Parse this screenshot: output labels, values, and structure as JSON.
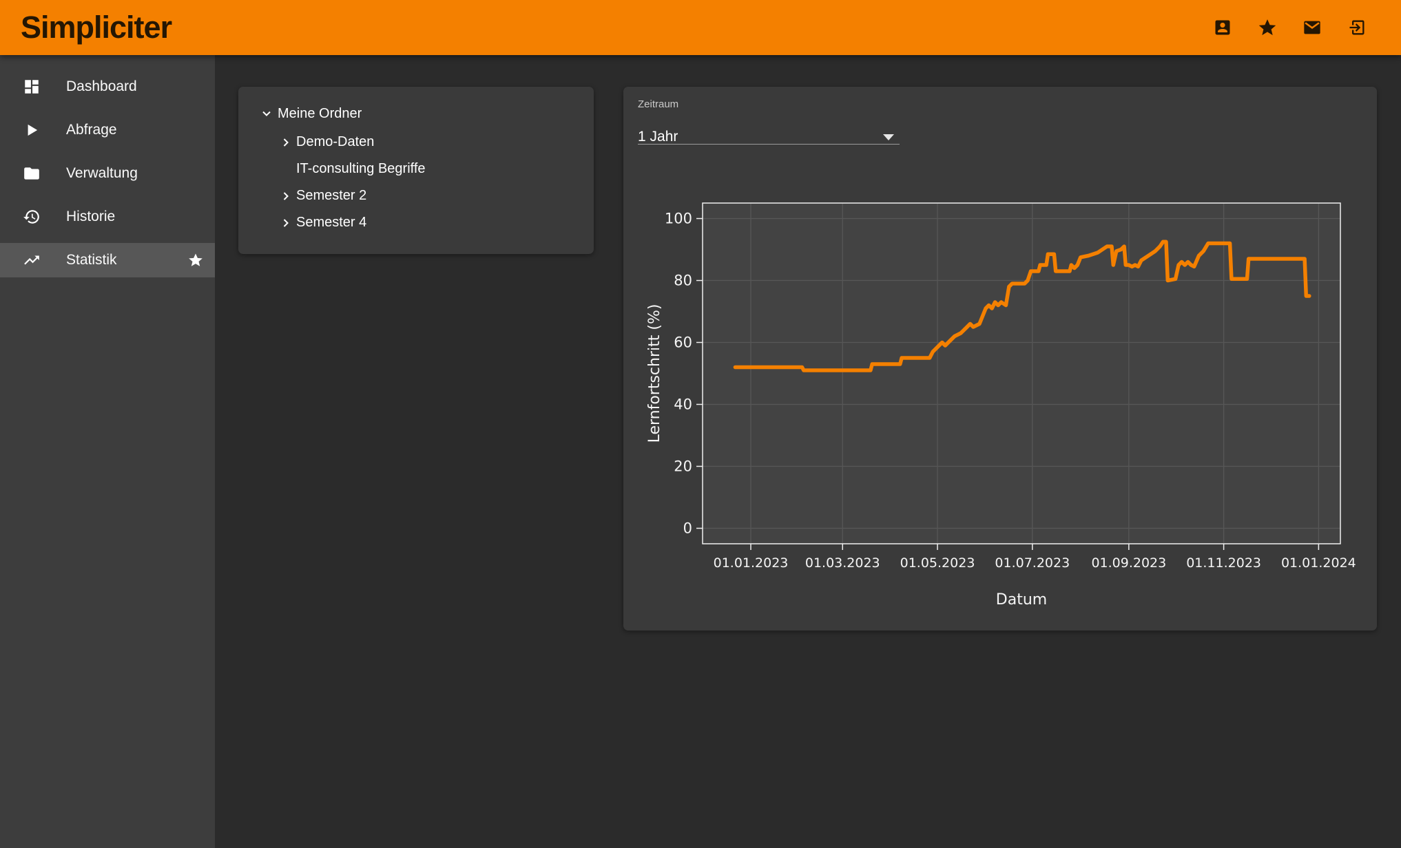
{
  "app": {
    "logo": "Simpliciter"
  },
  "colors": {
    "accent": "#F48000",
    "background": "#2B2B2B",
    "sidebar": "#3D3D3D",
    "panel": "#3A3A3A",
    "active_item": "#575757",
    "plot_background": "#434343",
    "gridline": "#575757",
    "plot_border": "#EFEFEF",
    "line": "#F48000"
  },
  "topbar": {
    "icons": [
      {
        "name": "account"
      },
      {
        "name": "favorites"
      },
      {
        "name": "mail"
      },
      {
        "name": "logout"
      }
    ]
  },
  "sidebar": {
    "items": [
      {
        "label": "Dashboard",
        "icon": "dashboard-icon",
        "active": false
      },
      {
        "label": "Abfrage",
        "icon": "play-icon",
        "active": false
      },
      {
        "label": "Verwaltung",
        "icon": "folder-icon",
        "active": false
      },
      {
        "label": "Historie",
        "icon": "history-icon",
        "active": false
      },
      {
        "label": "Statistik",
        "icon": "trending-up-icon",
        "active": true,
        "starred": true
      }
    ]
  },
  "tree": {
    "items": [
      {
        "label": "Meine Ordner",
        "chevron": "down",
        "level": 0
      },
      {
        "label": "Demo-Daten",
        "chevron": "right",
        "level": 1
      },
      {
        "label": "IT-consulting Begriffe",
        "chevron": "none",
        "level": 1
      },
      {
        "label": "Semester 2",
        "chevron": "right",
        "level": 1
      },
      {
        "label": "Semester 4",
        "chevron": "right",
        "level": 1
      }
    ]
  },
  "filter": {
    "label": "Zeitraum",
    "value": "1 Jahr"
  },
  "chart_data": {
    "type": "line",
    "title": "",
    "xlabel": "Datum",
    "ylabel": "Lernfortschritt (%)",
    "grid": true,
    "legend": "none",
    "x_domain": [
      "2022-12-01",
      "2024-01-15"
    ],
    "ylim": [
      -5,
      105
    ],
    "y_ticks": [
      0,
      20,
      40,
      60,
      80,
      100
    ],
    "x_tick_dates": [
      "2023-01-01",
      "2023-03-01",
      "2023-05-01",
      "2023-07-01",
      "2023-09-01",
      "2023-11-01",
      "2024-01-01"
    ],
    "x_ticks": [
      "01.01.2023",
      "01.03.2023",
      "01.05.2023",
      "01.07.2023",
      "01.09.2023",
      "01.11.2023",
      "01.01.2024"
    ],
    "line_color": "#F48000",
    "line_width": 5.5,
    "series": [
      {
        "name": "Lernfortschritt",
        "points": [
          [
            "2022-12-22",
            52
          ],
          [
            "2023-02-03",
            52
          ],
          [
            "2023-02-04",
            51
          ],
          [
            "2023-03-19",
            51
          ],
          [
            "2023-03-20",
            53
          ],
          [
            "2023-04-07",
            53
          ],
          [
            "2023-04-08",
            55
          ],
          [
            "2023-04-26",
            55
          ],
          [
            "2023-04-28",
            57
          ],
          [
            "2023-05-02",
            59
          ],
          [
            "2023-05-04",
            60
          ],
          [
            "2023-05-06",
            59
          ],
          [
            "2023-05-08",
            60
          ],
          [
            "2023-05-12",
            62
          ],
          [
            "2023-05-16",
            63
          ],
          [
            "2023-05-20",
            65
          ],
          [
            "2023-05-22",
            66
          ],
          [
            "2023-05-24",
            65
          ],
          [
            "2023-05-28",
            66
          ],
          [
            "2023-06-01",
            71
          ],
          [
            "2023-06-03",
            72
          ],
          [
            "2023-06-05",
            71
          ],
          [
            "2023-06-07",
            73
          ],
          [
            "2023-06-09",
            72
          ],
          [
            "2023-06-11",
            73
          ],
          [
            "2023-06-14",
            72
          ],
          [
            "2023-06-16",
            78
          ],
          [
            "2023-06-18",
            79
          ],
          [
            "2023-06-26",
            79
          ],
          [
            "2023-06-28",
            80
          ],
          [
            "2023-06-30",
            83
          ],
          [
            "2023-07-05",
            83
          ],
          [
            "2023-07-06",
            85
          ],
          [
            "2023-07-10",
            85
          ],
          [
            "2023-07-11",
            88.5
          ],
          [
            "2023-07-15",
            88.5
          ],
          [
            "2023-07-16",
            83
          ],
          [
            "2023-07-25",
            83
          ],
          [
            "2023-07-26",
            85
          ],
          [
            "2023-07-28",
            84
          ],
          [
            "2023-07-30",
            85
          ],
          [
            "2023-08-01",
            87.5
          ],
          [
            "2023-08-06",
            88
          ],
          [
            "2023-08-09",
            88.5
          ],
          [
            "2023-08-12",
            89
          ],
          [
            "2023-08-15",
            90
          ],
          [
            "2023-08-18",
            91
          ],
          [
            "2023-08-21",
            91
          ],
          [
            "2023-08-22",
            85
          ],
          [
            "2023-08-24",
            89.5
          ],
          [
            "2023-08-27",
            90
          ],
          [
            "2023-08-29",
            91
          ],
          [
            "2023-08-30",
            85
          ],
          [
            "2023-09-01",
            85
          ],
          [
            "2023-09-03",
            84.5
          ],
          [
            "2023-09-05",
            85
          ],
          [
            "2023-09-07",
            84.5
          ],
          [
            "2023-09-09",
            86.5
          ],
          [
            "2023-09-12",
            87.5
          ],
          [
            "2023-09-15",
            88.5
          ],
          [
            "2023-09-18",
            89.5
          ],
          [
            "2023-09-21",
            91
          ],
          [
            "2023-09-23",
            92.5
          ],
          [
            "2023-09-25",
            92.5
          ],
          [
            "2023-09-26",
            80
          ],
          [
            "2023-10-01",
            80.5
          ],
          [
            "2023-10-03",
            85
          ],
          [
            "2023-10-05",
            86
          ],
          [
            "2023-10-07",
            85
          ],
          [
            "2023-10-09",
            86
          ],
          [
            "2023-10-11",
            85
          ],
          [
            "2023-10-13",
            84.5
          ],
          [
            "2023-10-16",
            88
          ],
          [
            "2023-10-19",
            89.5
          ],
          [
            "2023-10-22",
            92
          ],
          [
            "2023-11-05",
            92
          ],
          [
            "2023-11-06",
            80.5
          ],
          [
            "2023-11-16",
            80.5
          ],
          [
            "2023-11-17",
            87
          ],
          [
            "2023-12-23",
            87
          ],
          [
            "2023-12-24",
            75
          ],
          [
            "2023-12-26",
            75
          ]
        ]
      }
    ]
  }
}
